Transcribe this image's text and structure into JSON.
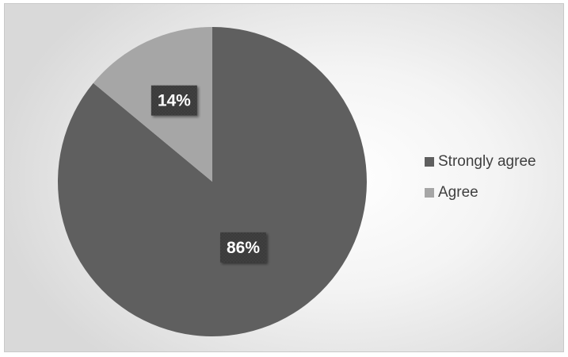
{
  "colors": {
    "strongly_agree": "#5f5f5f",
    "agree": "#a6a6a6",
    "label_box": "#3a3a3a"
  },
  "chart_data": {
    "type": "pie",
    "title": "",
    "categories": [
      "Strongly agree",
      "Agree"
    ],
    "values": [
      86,
      14
    ],
    "data_labels": [
      "86%",
      "14%"
    ],
    "legend": {
      "placement": "right",
      "entries": [
        "Strongly agree",
        "Agree"
      ]
    },
    "start_angle_deg": 0,
    "direction": "clockwise"
  }
}
